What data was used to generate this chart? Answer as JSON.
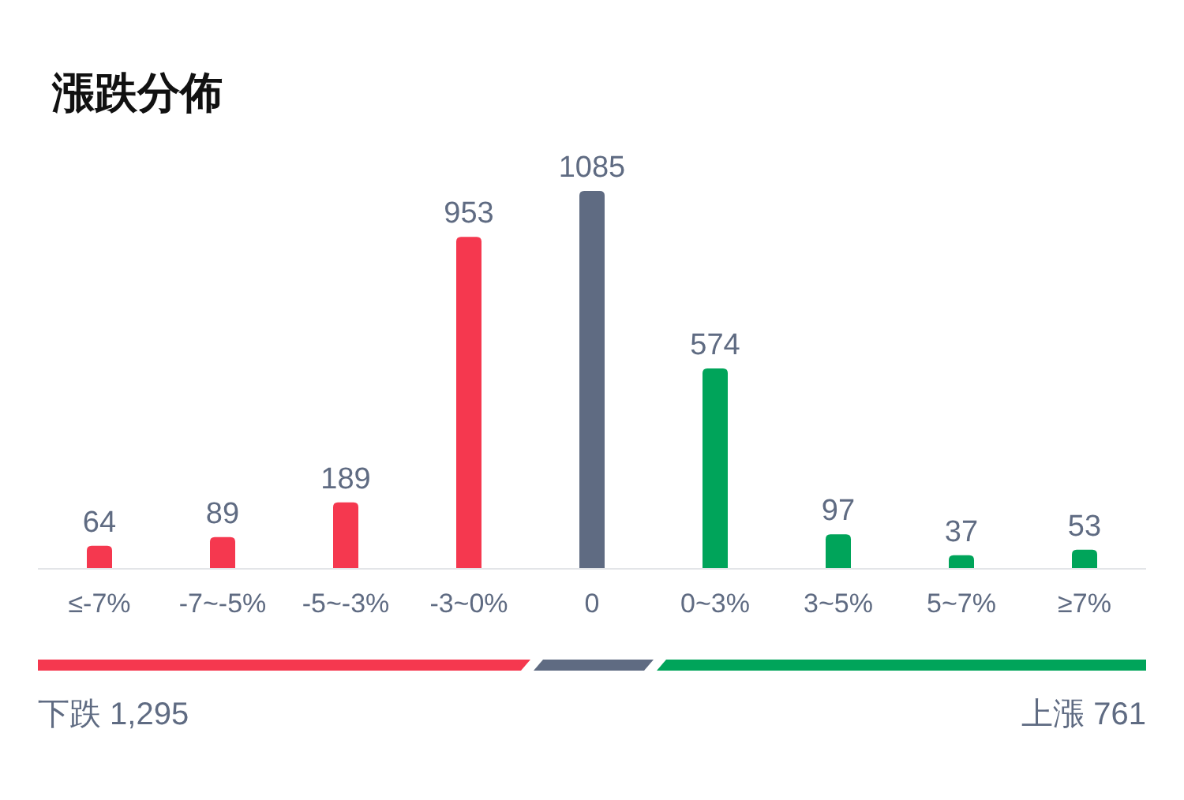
{
  "chart_data": {
    "type": "bar",
    "title": "漲跌分佈",
    "categories": [
      "≤-7%",
      "-7~-5%",
      "-5~-3%",
      "-3~0%",
      "0",
      "0~3%",
      "3~5%",
      "5~7%",
      "≥7%"
    ],
    "values": [
      64,
      89,
      189,
      953,
      1085,
      574,
      97,
      37,
      53
    ],
    "colors": [
      "#f5384f",
      "#f5384f",
      "#f5384f",
      "#f5384f",
      "#5f6b82",
      "#00a45a",
      "#00a45a",
      "#00a45a",
      "#00a45a"
    ],
    "data_labels": true,
    "annotations": [
      "下跌 1,295",
      "上漲 761"
    ]
  }
}
